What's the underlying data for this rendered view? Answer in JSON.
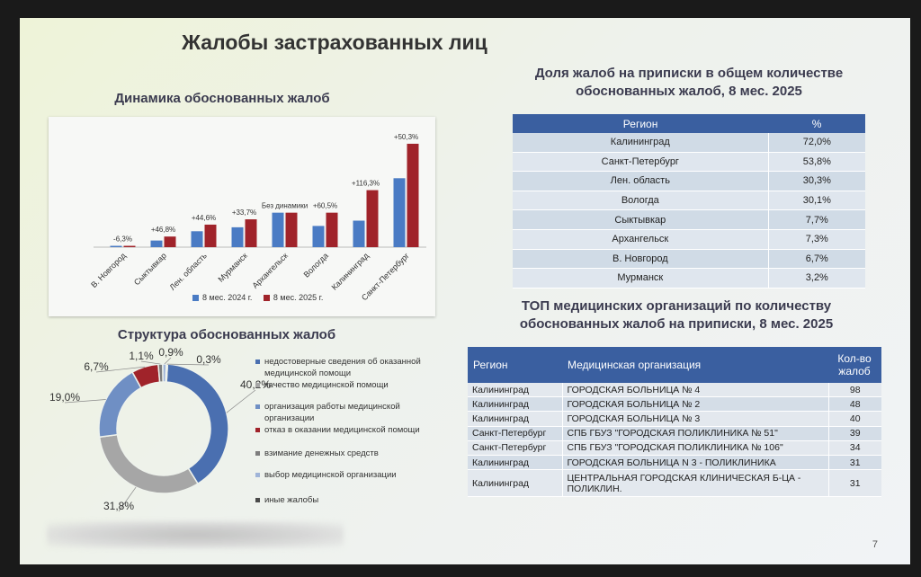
{
  "slide": {
    "title": "Жалобы застрахованных лиц",
    "page_number": "7"
  },
  "bar_section": {
    "heading": "Динамика обоснованных жалоб",
    "legend": [
      "8 мес. 2024 г.",
      "8 мес. 2025 г."
    ],
    "colors": {
      "y2024": "#4a7bc4",
      "y2025": "#a0232a"
    }
  },
  "chart_data": [
    {
      "type": "bar",
      "title": "Динамика обоснованных жалоб",
      "categories": [
        "В. Новгород",
        "Сыктывкар",
        "Лен. область",
        "Мурманск",
        "Архангельск",
        "Вологда",
        "Калининград",
        "Санкт-Петербург"
      ],
      "series": [
        {
          "name": "8 мес. 2024 г.",
          "values": [
            1,
            5,
            12,
            15,
            26,
            16,
            20,
            52
          ]
        },
        {
          "name": "8 мес. 2025 г.",
          "values": [
            1,
            8,
            17,
            21,
            26,
            26,
            43,
            78
          ]
        }
      ],
      "data_labels": [
        "-6,3%",
        "+46,8%",
        "+44,6%",
        "+33,7%",
        "Без динамики",
        "+60,5%",
        "+116,3%",
        "+50,3%"
      ],
      "ylim": [
        0,
        80
      ]
    },
    {
      "type": "pie",
      "title": "Структура обоснованных жалоб",
      "categories": [
        "недостоверные сведения об оказанной медицинской помощи",
        "качество медицинской помощи",
        "организация работы медицинской организации",
        "отказ в оказании медицинской помощи",
        "взимание денежных средств",
        "выбор медицинской организации",
        "иные жалобы"
      ],
      "values": [
        40.2,
        31.8,
        19.0,
        6.7,
        1.1,
        0.9,
        0.3
      ],
      "value_labels": [
        "40,2%",
        "31,8%",
        "19,0%",
        "6,7%",
        "1,1%",
        "0,9%",
        "0,3%"
      ],
      "colors": [
        "#4a6fb0",
        "#a6a6a6",
        "#6f8fc4",
        "#a0232a",
        "#7d7d7d",
        "#9fb4d8",
        "#4a4a4a"
      ]
    }
  ],
  "donut_section": {
    "heading": "Структура обоснованных жалоб",
    "legend": [
      "недостоверные сведения об оказанной медицинской помощи",
      "качество медицинской помощи",
      "организация работы медицинской организации",
      "отказ в оказании медицинской помощи",
      "взимание денежных средств",
      "выбор медицинской организации",
      "иные жалобы"
    ]
  },
  "share_section": {
    "heading_line1": "Доля жалоб на приписки в общем количестве",
    "heading_line2": "обоснованных жалоб, 8 мес. 2025",
    "columns": [
      "Регион",
      "%"
    ],
    "rows": [
      [
        "Калининград",
        "72,0%"
      ],
      [
        "Санкт-Петербург",
        "53,8%"
      ],
      [
        "Лен. область",
        "30,3%"
      ],
      [
        "Вологда",
        "30,1%"
      ],
      [
        "Сыктывкар",
        "7,7%"
      ],
      [
        "Архангельск",
        "7,3%"
      ],
      [
        "В. Новгород",
        "6,7%"
      ],
      [
        "Мурманск",
        "3,2%"
      ]
    ]
  },
  "top_section": {
    "heading_line1": "ТОП медицинских организаций по количеству",
    "heading_line2": "обоснованных жалоб на приписки, 8 мес. 2025",
    "columns": [
      "Регион",
      "Медицинская организация",
      "Кол-во жалоб"
    ],
    "rows": [
      [
        "Калининград",
        "ГОРОДСКАЯ БОЛЬНИЦА № 4",
        "98"
      ],
      [
        "Калининград",
        "ГОРОДСКАЯ БОЛЬНИЦА № 2",
        "48"
      ],
      [
        "Калининград",
        "ГОРОДСКАЯ БОЛЬНИЦА № 3",
        "40"
      ],
      [
        "Санкт-Петербург",
        "СПБ ГБУЗ \"ГОРОДСКАЯ ПОЛИКЛИНИКА № 51\"",
        "39"
      ],
      [
        "Санкт-Петербург",
        "СПБ ГБУЗ \"ГОРОДСКАЯ ПОЛИКЛИНИКА № 106\"",
        "34"
      ],
      [
        "Калининград",
        "ГОРОДСКАЯ БОЛЬНИЦА N 3 - ПОЛИКЛИНИКА",
        "31"
      ],
      [
        "Калининград",
        "ЦЕНТРАЛЬНАЯ ГОРОДСКАЯ КЛИНИЧЕСКАЯ Б-ЦА - ПОЛИКЛИН.",
        "31"
      ]
    ]
  }
}
